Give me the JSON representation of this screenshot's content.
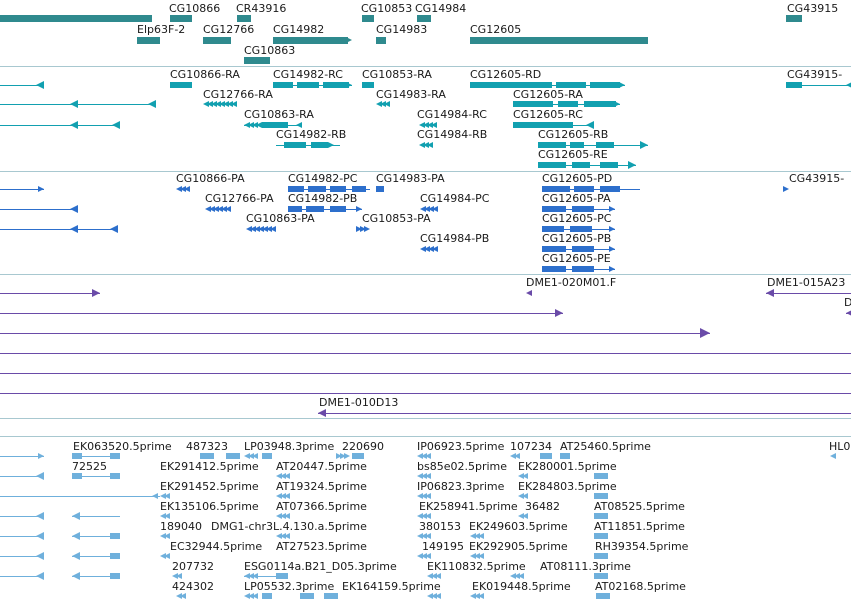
{
  "colors": {
    "gene": "#2f8a8e",
    "transcript": "#12a0b0",
    "protein": "#2d6fcc",
    "bac": "#6a4ba8",
    "est": "#6fb0dc",
    "divider": "#a8c8d0"
  },
  "icons": {
    "forward": "right-arrow-icon",
    "reverse": "left-arrow-icon"
  },
  "tracks": {
    "genes": {
      "labels": [
        "CG10866",
        "CR43916",
        "CG10853",
        "CG14984",
        "CG43915",
        "Elp63F-2",
        "CG12766",
        "CG14982",
        "CG14983",
        "CG12605",
        "CG10863"
      ]
    },
    "transcripts": {
      "labels": [
        "CG10866-RA",
        "CG14982-RC",
        "CG10853-RA",
        "CG12605-RD",
        "CG43915-",
        "CG12766-RA",
        "CG14983-RA",
        "CG12605-RA",
        "CG10863-RA",
        "CG14984-RC",
        "CG12605-RC",
        "CG14982-RB",
        "CG14984-RB",
        "CG12605-RB",
        "CG12605-RE"
      ]
    },
    "proteins": {
      "labels": [
        "CG10866-PA",
        "CG14982-PC",
        "CG14983-PA",
        "CG12605-PD",
        "CG43915-",
        "CG12766-PA",
        "CG14982-PB",
        "CG14984-PC",
        "CG12605-PA",
        "CG10863-PA",
        "CG10853-PA",
        "CG12605-PC",
        "CG14984-PB",
        "CG12605-PB",
        "CG12605-PE"
      ]
    },
    "bacs": {
      "labels": [
        "DME1-020M01.F",
        "DME1-015A23",
        "D",
        "DME1-010D13"
      ]
    },
    "ests": {
      "labels": [
        "EK063520.5prime",
        "487323",
        "LP03948.3prime",
        "220690",
        "IP06923.5prime",
        "107234",
        "AT25460.5prime",
        "HL0",
        "72525",
        "EK291412.5prime",
        "AT20447.5prime",
        "bs85e02.5prime",
        "EK280001.5prime",
        "EK291452.5prime",
        "AT19324.5prime",
        "IP06823.3prime",
        "EK284803.5prime",
        "EK135106.5prime",
        "AT07366.5prime",
        "EK258941.5prime",
        "36482",
        "AT08525.5prime",
        "189040",
        "DMG1-chr3L.4.130.a.5prime",
        "380153",
        "EK249603.5prime",
        "AT11851.5prime",
        "EC32944.5prime",
        "AT27523.5prime",
        "149195",
        "EK292905.5prime",
        "RH39354.5prime",
        "207732",
        "ESG0114a.B21_D05.3prime",
        "EK110832.5prime",
        "AT08111.3prime",
        "424302",
        "LP05532.3prime",
        "EK164159.5prime",
        "EK019448.5prime",
        "AT02168.5prime"
      ]
    }
  }
}
